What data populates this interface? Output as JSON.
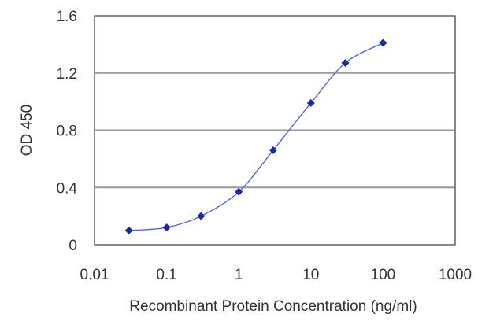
{
  "chart_data": {
    "type": "scatter",
    "title": "",
    "xlabel": "Recombinant Protein Concentration (ng/ml)",
    "ylabel": "OD 450",
    "x_scale": "log",
    "xlim": [
      0.01,
      1000
    ],
    "ylim": [
      0,
      1.6
    ],
    "x_ticks": [
      0.01,
      0.1,
      1,
      10,
      100,
      1000
    ],
    "x_tick_labels": [
      "0.01",
      "0.1",
      "1",
      "10",
      "100",
      "1000"
    ],
    "y_ticks": [
      0,
      0.4,
      0.8,
      1.2,
      1.6
    ],
    "y_tick_labels": [
      "0",
      "0.4",
      "0.8",
      "1.2",
      "1.6"
    ],
    "grid": "horizontal",
    "legend": "none",
    "series": [
      {
        "x": [
          0.03,
          0.1,
          0.3,
          1,
          3,
          10,
          30,
          100
        ],
        "y": [
          0.1,
          0.12,
          0.2,
          0.37,
          0.66,
          0.99,
          1.27,
          1.41
        ],
        "color": "#1a2a9c",
        "curve": "fitted sigmoid line"
      }
    ]
  }
}
